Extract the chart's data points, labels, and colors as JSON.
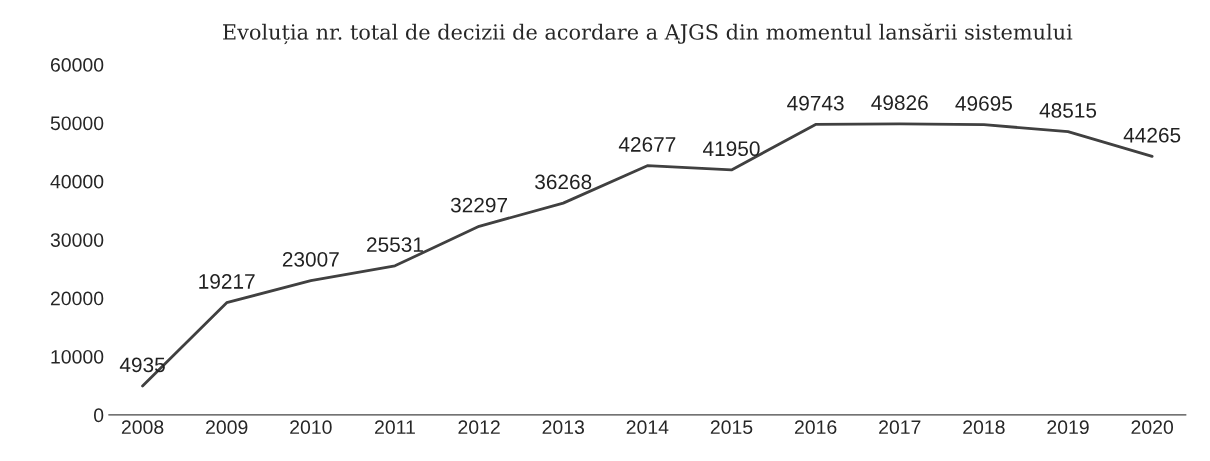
{
  "chart_data": {
    "type": "line",
    "title": "Evoluția nr. total de decizii de acordare a AJGS din momentul lansării sistemului",
    "categories": [
      "2008",
      "2009",
      "2010",
      "2011",
      "2012",
      "2013",
      "2014",
      "2015",
      "2016",
      "2017",
      "2018",
      "2019",
      "2020"
    ],
    "series": [
      {
        "color": "#404040",
        "values": [
          4935,
          19217,
          23007,
          25531,
          32297,
          36268,
          42677,
          41950,
          49743,
          49826,
          49695,
          48515,
          44265
        ]
      }
    ],
    "ylim": [
      0,
      60000
    ],
    "yticks": [
      0,
      10000,
      20000,
      30000,
      40000,
      50000,
      60000
    ],
    "data_labels": true,
    "grid": false,
    "legend": false,
    "line_style": "solid"
  }
}
